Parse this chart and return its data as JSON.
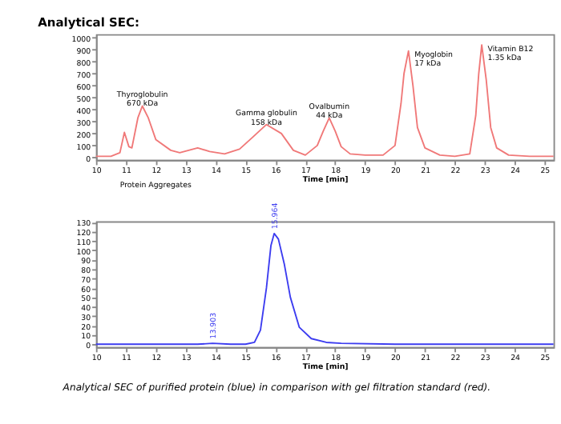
{
  "chart_data": [
    {
      "type": "line",
      "title": "Analytical SEC:",
      "xlabel": "Time [min]",
      "xlim": [
        10,
        25.3
      ],
      "xticks": [
        10,
        11,
        12,
        13,
        14,
        15,
        16,
        17,
        18,
        19,
        20,
        21,
        22,
        23,
        24,
        25
      ],
      "ylim": [
        -20,
        1030
      ],
      "yticks": [
        0,
        100,
        200,
        300,
        400,
        500,
        600,
        700,
        800,
        900,
        1000
      ],
      "series": [
        {
          "color": "#f07878",
          "x": [
            10,
            10.5,
            10.8,
            10.95,
            11.1,
            11.2,
            11.4,
            11.55,
            11.75,
            12,
            12.5,
            12.8,
            13.1,
            13.4,
            13.8,
            14.3,
            14.8,
            15.2,
            15.7,
            16.2,
            16.6,
            17,
            17.4,
            17.6,
            17.8,
            18,
            18.2,
            18.5,
            19,
            19.6,
            20,
            20.2,
            20.3,
            20.45,
            20.6,
            20.75,
            21,
            21.5,
            22,
            22.5,
            22.7,
            22.8,
            22.9,
            23.05,
            23.2,
            23.4,
            23.8,
            24.5,
            25.3
          ],
          "values": [
            10,
            10,
            40,
            210,
            90,
            80,
            330,
            430,
            330,
            150,
            60,
            40,
            60,
            80,
            50,
            30,
            70,
            160,
            275,
            200,
            60,
            20,
            100,
            220,
            330,
            220,
            90,
            30,
            20,
            20,
            100,
            450,
            700,
            890,
            600,
            250,
            80,
            20,
            10,
            30,
            350,
            700,
            940,
            650,
            250,
            80,
            20,
            10,
            10
          ]
        }
      ],
      "annotations": [
        {
          "text": "Thyroglobulin\n670 kDa",
          "x": 11.55,
          "y": 430
        },
        {
          "text": "Gamma globulin\n158 kDa",
          "x": 15.7,
          "y": 275
        },
        {
          "text": "Ovalbumin\n44 kDa",
          "x": 17.8,
          "y": 330
        },
        {
          "text": "Myoglobin\n17 kDa",
          "x": 20.45,
          "y": 890
        },
        {
          "text": "Vitamin B12\n1.35 kDa",
          "x": 22.9,
          "y": 940
        },
        "Protein Aggregates"
      ]
    },
    {
      "type": "line",
      "xlabel": "Time [min]",
      "xlim": [
        10,
        25.3
      ],
      "xticks": [
        10,
        11,
        12,
        13,
        14,
        15,
        16,
        17,
        18,
        19,
        20,
        21,
        22,
        23,
        24,
        25
      ],
      "ylim": [
        -3,
        131
      ],
      "yticks": [
        0,
        10,
        20,
        30,
        40,
        50,
        60,
        70,
        80,
        90,
        100,
        110,
        120,
        130
      ],
      "series": [
        {
          "color": "#3c3cf0",
          "x": [
            10,
            13,
            13.4,
            13.9,
            14.5,
            15,
            15.3,
            15.5,
            15.7,
            15.85,
            15.96,
            16.1,
            16.3,
            16.5,
            16.8,
            17.2,
            17.7,
            18.2,
            20,
            25.3
          ],
          "values": [
            0,
            0,
            0,
            1,
            0,
            0,
            2,
            15,
            60,
            105,
            118,
            112,
            85,
            50,
            18,
            6,
            2,
            1,
            0,
            0
          ]
        }
      ],
      "annotations": [
        {
          "text": "13.903",
          "x": 13.9,
          "y": 1
        },
        {
          "text": "15.964",
          "x": 15.96,
          "y": 118
        },
        "Analytical SEC of purified protein (blue) in comparison with gel filtration standard (red)."
      ]
    }
  ]
}
